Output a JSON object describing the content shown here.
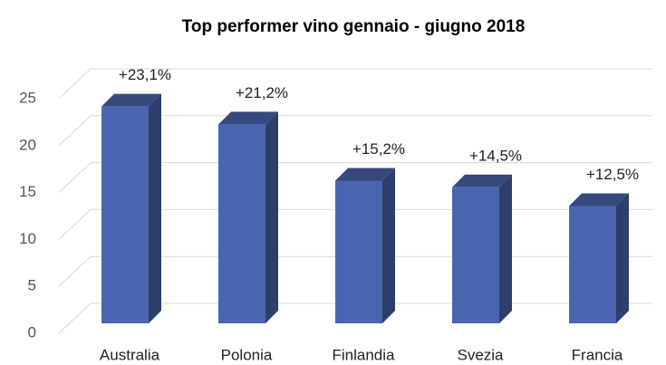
{
  "chart_data": {
    "type": "bar3d",
    "title": "Top performer vino gennaio - giugno 2018",
    "categories": [
      "Australia",
      "Polonia",
      "Finlandia",
      "Svezia",
      "Francia"
    ],
    "values": [
      23.1,
      21.2,
      15.2,
      14.5,
      12.5
    ],
    "value_labels": [
      "+23,1%",
      "+21,2%",
      "+15,2%",
      "+14,5%",
      "+12,5%"
    ],
    "color": "#4a65b0",
    "ylim": [
      0,
      25
    ],
    "yticks": [
      0,
      5,
      10,
      15,
      20,
      25
    ],
    "grid": true
  }
}
